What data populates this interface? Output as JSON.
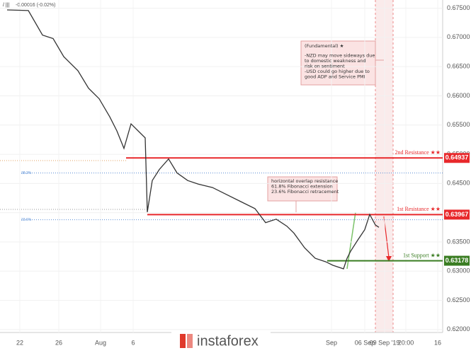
{
  "chart_data": {
    "type": "line",
    "header": "-0.00016 (-0.02%)",
    "color": "#333333",
    "grid": true,
    "xlim": [
      0,
      124
    ],
    "ylim": [
      0.6195,
      0.6764
    ],
    "x": [
      2,
      8,
      12,
      15,
      18,
      22,
      25,
      28,
      31,
      33,
      35,
      37,
      39,
      41,
      41.6,
      43,
      45,
      47.6,
      50,
      53,
      56,
      60,
      64,
      68,
      72,
      75,
      78,
      81,
      83,
      86,
      89,
      92,
      94,
      97,
      98,
      99,
      101,
      103,
      104.4,
      106,
      107
    ],
    "values": [
      0.6747,
      0.6746,
      0.6704,
      0.6698,
      0.6667,
      0.6643,
      0.6613,
      0.6595,
      0.6564,
      0.654,
      0.651,
      0.6552,
      0.654,
      0.6528,
      0.6401,
      0.6455,
      0.6474,
      0.6492,
      0.6468,
      0.6455,
      0.6449,
      0.6443,
      0.6431,
      0.6419,
      0.6407,
      0.6383,
      0.6389,
      0.6377,
      0.6365,
      0.634,
      0.6322,
      0.6316,
      0.631,
      0.6304,
      0.6322,
      0.6334,
      0.6353,
      0.6371,
      0.6397,
      0.6379,
      0.6375
    ],
    "xticks": [
      {
        "value": 5.6,
        "label": "22"
      },
      {
        "value": 16.6,
        "label": "26"
      },
      {
        "value": 28.4,
        "label": "Aug"
      },
      {
        "value": 37.6,
        "label": "6"
      },
      {
        "value": 93.6,
        "label": "Sep"
      },
      {
        "value": 103,
        "label": "06 Sep"
      },
      {
        "value": 108.6,
        "label": "09 Sep '19"
      },
      {
        "value": 114.6,
        "label": "20:00"
      },
      {
        "value": 123.6,
        "label": "16"
      }
    ],
    "yticks": [
      {
        "value": 0.675,
        "label": "0.67500"
      },
      {
        "value": 0.67,
        "label": "0.67000"
      },
      {
        "value": 0.665,
        "label": "0.66500"
      },
      {
        "value": 0.66,
        "label": "0.66000"
      },
      {
        "value": 0.655,
        "label": "0.65500"
      },
      {
        "value": 0.65,
        "label": "0.65000"
      },
      {
        "value": 0.645,
        "label": "0.64500"
      },
      {
        "value": 0.64,
        "label": "0.64000"
      },
      {
        "value": 0.635,
        "label": "0.63500"
      },
      {
        "value": 0.63,
        "label": "0.63000"
      },
      {
        "value": 0.625,
        "label": "0.62500"
      },
      {
        "value": 0.62,
        "label": "0.62000"
      }
    ],
    "levels": [
      {
        "label": "2nd Resistance ★★",
        "value": 0.64937,
        "color": "#e8282b",
        "start": 35.6
      },
      {
        "label": "1st Resistance ★★",
        "value": 0.63967,
        "color": "#e8282b",
        "start": 41.6
      },
      {
        "label": "1st Support ★★",
        "value": 0.63178,
        "color": "#3a7d22",
        "start": 92.4
      }
    ],
    "fib_levels": [
      {
        "label": "38.2%",
        "value": 0.6468
      },
      {
        "label": "23.6%",
        "value": 0.6388
      }
    ],
    "notes": [
      {
        "lines": [
          "(Fundamental) ★",
          "-NZD may move sideways due",
          "to domestic weakness and",
          "risk on sentiment",
          "-USD could go higher due to",
          "good ADP and Service PMI"
        ]
      },
      {
        "lines": [
          "horizontal overlap resistance",
          "61.8% Fibonacci extension",
          "23.6% Fibonacci retracement"
        ]
      }
    ],
    "watermark": "instaforex"
  }
}
